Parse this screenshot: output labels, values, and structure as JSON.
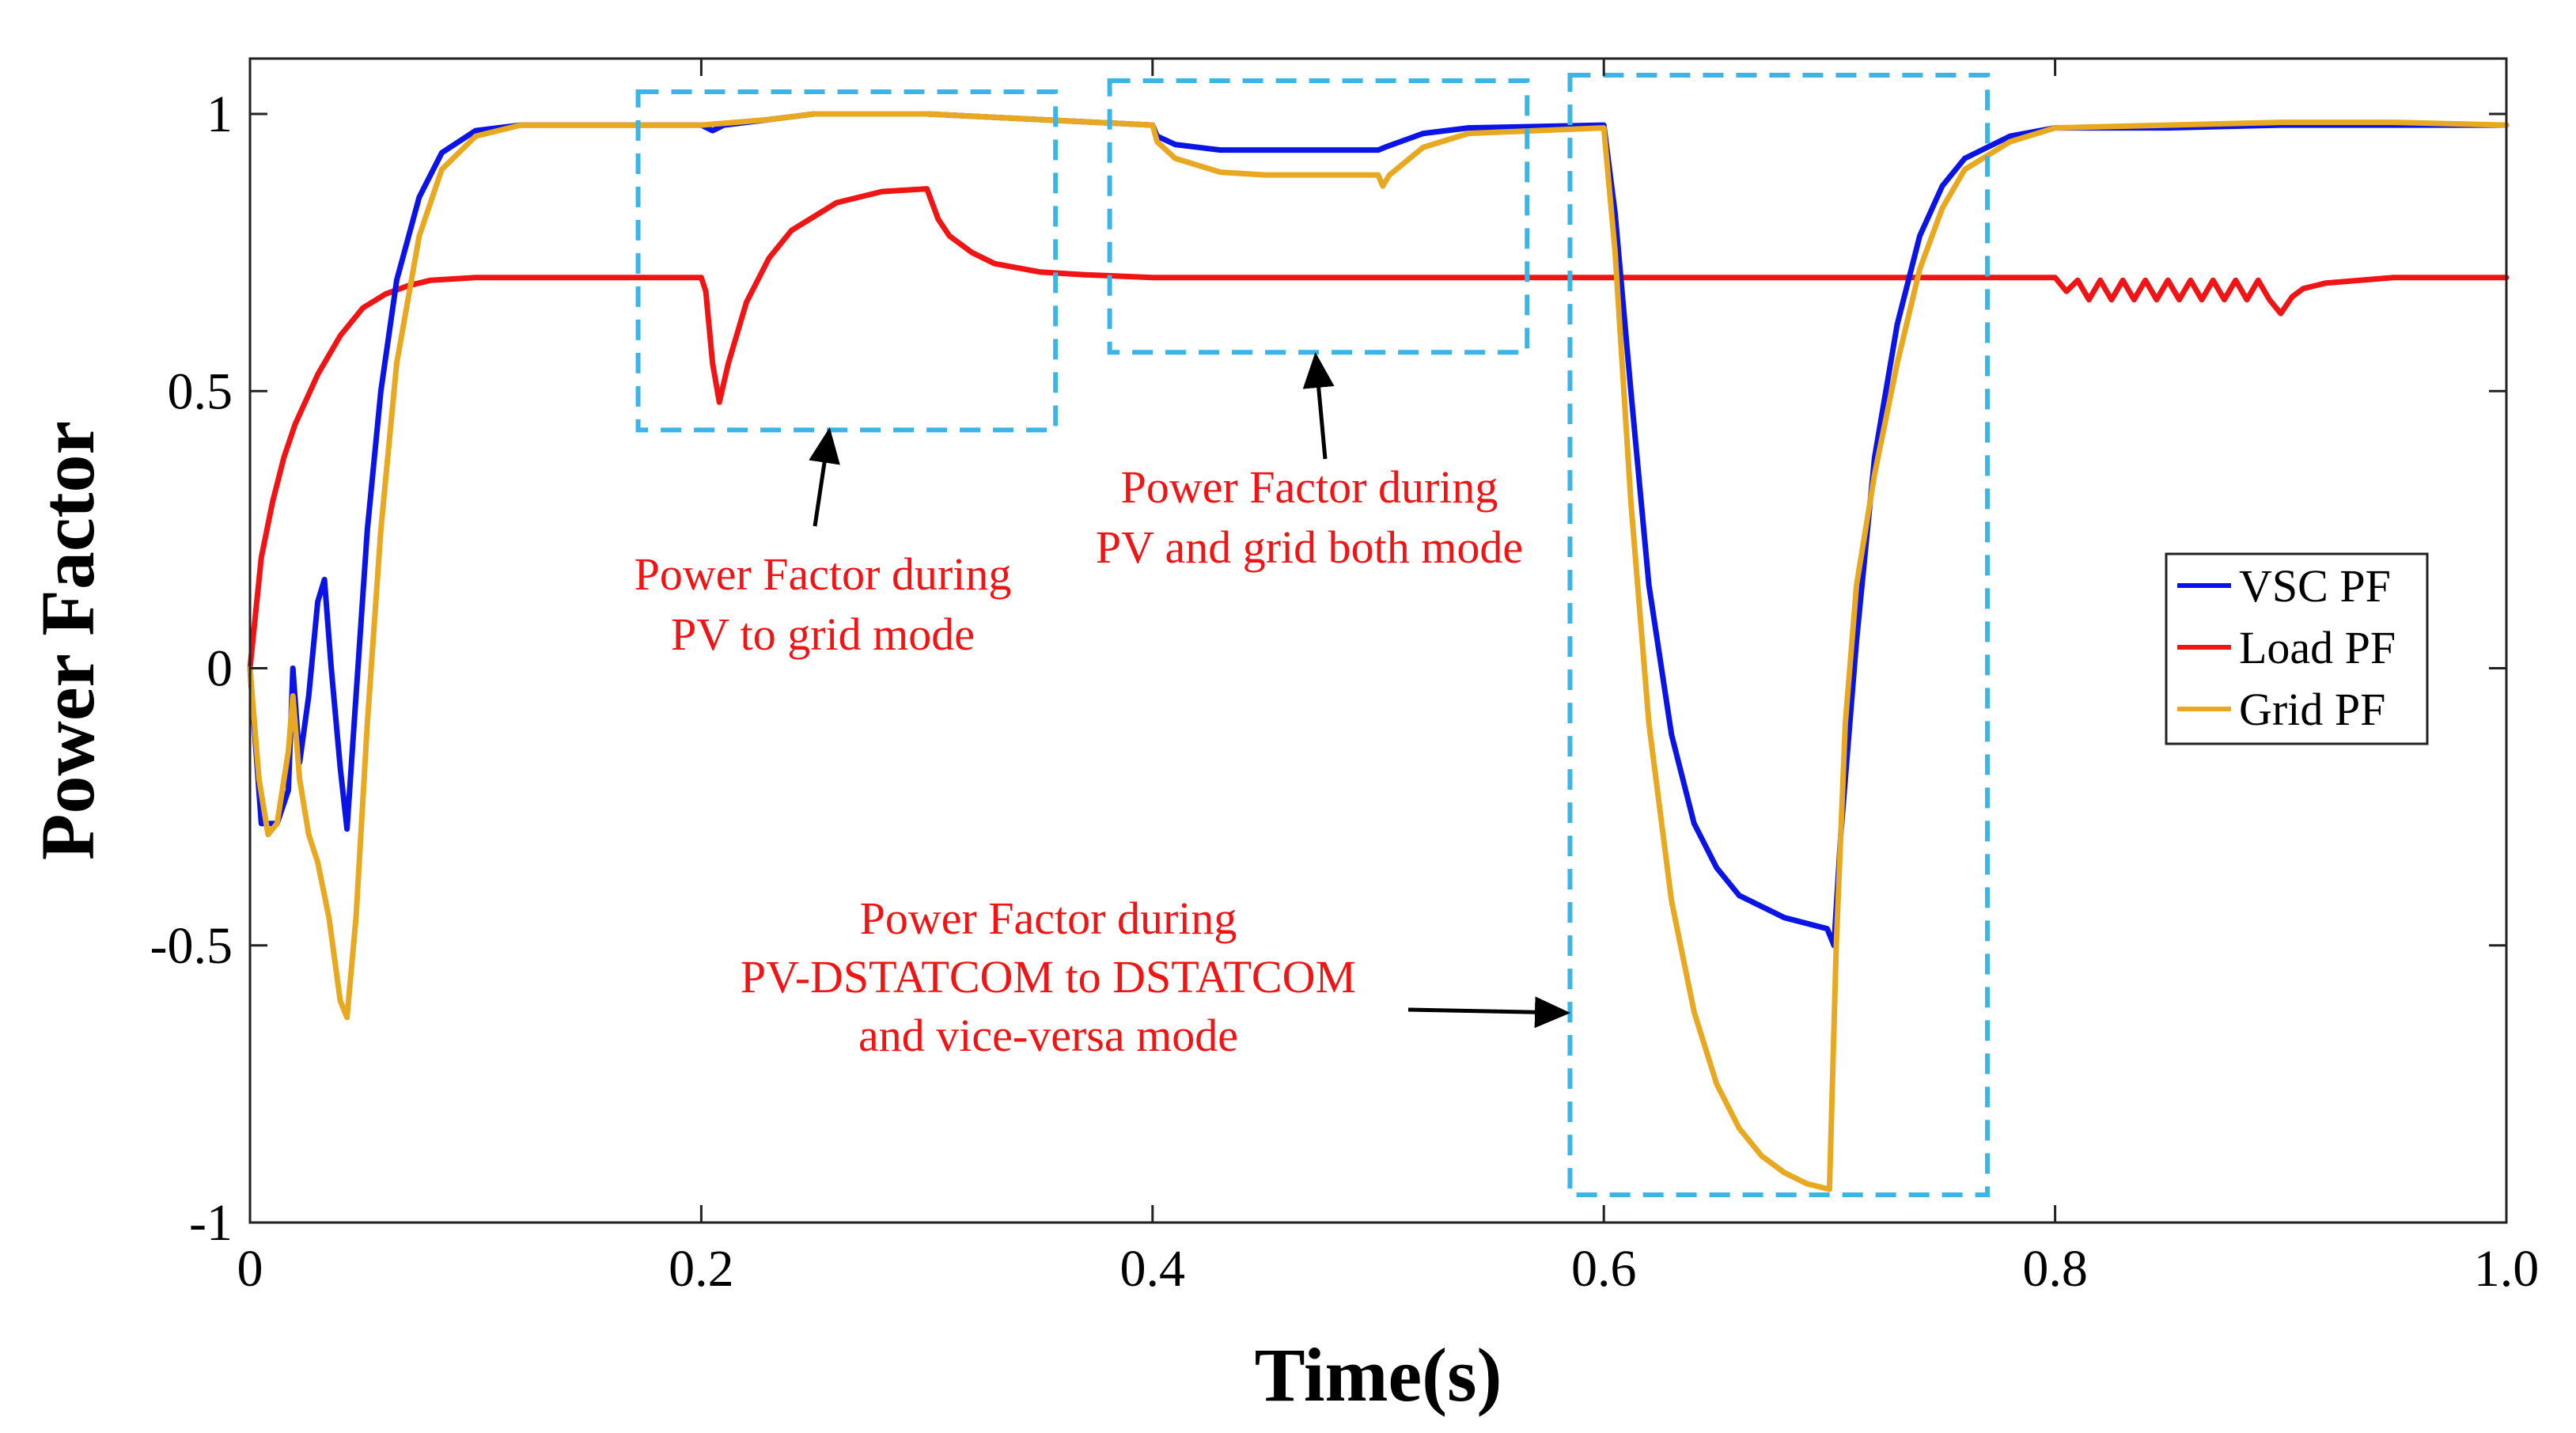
{
  "chart_data": {
    "type": "line",
    "title": "",
    "xlabel": "Time(s)",
    "ylabel": "Power Factor",
    "xlim": [
      0,
      1.0
    ],
    "ylim": [
      -1,
      1.1
    ],
    "xticks": [
      0,
      0.2,
      0.4,
      0.6,
      0.8,
      1.0
    ],
    "xtick_labels": [
      "0",
      "0.2",
      "0.4",
      "0.6",
      "0.8",
      "1.0"
    ],
    "yticks": [
      -1,
      -0.5,
      0,
      0.5,
      1
    ],
    "ytick_labels": [
      "-1",
      "-0.5",
      "0",
      "0.5",
      "1"
    ],
    "grid": false,
    "legend_position": "right",
    "series": [
      {
        "name": "VSC PF",
        "color": "#0a14e6",
        "points": [
          [
            0,
            0
          ],
          [
            0.005,
            -0.28
          ],
          [
            0.012,
            -0.28
          ],
          [
            0.017,
            -0.22
          ],
          [
            0.019,
            0.0
          ],
          [
            0.022,
            -0.17
          ],
          [
            0.026,
            -0.05
          ],
          [
            0.03,
            0.12
          ],
          [
            0.033,
            0.16
          ],
          [
            0.036,
            0.0
          ],
          [
            0.04,
            -0.18
          ],
          [
            0.043,
            -0.29
          ],
          [
            0.047,
            -0.05
          ],
          [
            0.052,
            0.25
          ],
          [
            0.058,
            0.5
          ],
          [
            0.065,
            0.7
          ],
          [
            0.075,
            0.85
          ],
          [
            0.085,
            0.93
          ],
          [
            0.1,
            0.97
          ],
          [
            0.12,
            0.98
          ],
          [
            0.2,
            0.98
          ],
          [
            0.205,
            0.97
          ],
          [
            0.21,
            0.98
          ],
          [
            0.23,
            0.99
          ],
          [
            0.25,
            1.0
          ],
          [
            0.3,
            1.0
          ],
          [
            0.35,
            0.99
          ],
          [
            0.4,
            0.98
          ],
          [
            0.402,
            0.96
          ],
          [
            0.41,
            0.945
          ],
          [
            0.43,
            0.935
          ],
          [
            0.5,
            0.935
          ],
          [
            0.503,
            0.94
          ],
          [
            0.52,
            0.965
          ],
          [
            0.54,
            0.975
          ],
          [
            0.6,
            0.98
          ],
          [
            0.605,
            0.82
          ],
          [
            0.612,
            0.5
          ],
          [
            0.62,
            0.15
          ],
          [
            0.63,
            -0.12
          ],
          [
            0.64,
            -0.28
          ],
          [
            0.65,
            -0.36
          ],
          [
            0.66,
            -0.41
          ],
          [
            0.68,
            -0.45
          ],
          [
            0.699,
            -0.47
          ],
          [
            0.702,
            -0.5
          ],
          [
            0.705,
            -0.3
          ],
          [
            0.712,
            0.05
          ],
          [
            0.72,
            0.38
          ],
          [
            0.73,
            0.62
          ],
          [
            0.74,
            0.78
          ],
          [
            0.75,
            0.87
          ],
          [
            0.76,
            0.92
          ],
          [
            0.78,
            0.96
          ],
          [
            0.8,
            0.975
          ],
          [
            0.85,
            0.975
          ],
          [
            0.9,
            0.98
          ],
          [
            0.95,
            0.98
          ],
          [
            1.0,
            0.98
          ]
        ]
      },
      {
        "name": "Load PF",
        "color": "#f01414",
        "points": [
          [
            0,
            0
          ],
          [
            0.005,
            0.2
          ],
          [
            0.01,
            0.3
          ],
          [
            0.015,
            0.38
          ],
          [
            0.02,
            0.44
          ],
          [
            0.03,
            0.53
          ],
          [
            0.04,
            0.6
          ],
          [
            0.05,
            0.65
          ],
          [
            0.06,
            0.675
          ],
          [
            0.07,
            0.69
          ],
          [
            0.08,
            0.7
          ],
          [
            0.1,
            0.705
          ],
          [
            0.2,
            0.705
          ],
          [
            0.202,
            0.68
          ],
          [
            0.205,
            0.55
          ],
          [
            0.208,
            0.48
          ],
          [
            0.212,
            0.55
          ],
          [
            0.22,
            0.66
          ],
          [
            0.23,
            0.74
          ],
          [
            0.24,
            0.79
          ],
          [
            0.26,
            0.84
          ],
          [
            0.28,
            0.86
          ],
          [
            0.3,
            0.865
          ],
          [
            0.305,
            0.81
          ],
          [
            0.31,
            0.78
          ],
          [
            0.32,
            0.75
          ],
          [
            0.33,
            0.73
          ],
          [
            0.35,
            0.715
          ],
          [
            0.37,
            0.71
          ],
          [
            0.4,
            0.705
          ],
          [
            0.6,
            0.705
          ],
          [
            0.8,
            0.705
          ],
          [
            0.805,
            0.68
          ],
          [
            0.81,
            0.7
          ],
          [
            0.815,
            0.665
          ],
          [
            0.82,
            0.7
          ],
          [
            0.825,
            0.665
          ],
          [
            0.83,
            0.7
          ],
          [
            0.835,
            0.665
          ],
          [
            0.84,
            0.7
          ],
          [
            0.845,
            0.665
          ],
          [
            0.85,
            0.7
          ],
          [
            0.855,
            0.665
          ],
          [
            0.86,
            0.7
          ],
          [
            0.865,
            0.665
          ],
          [
            0.87,
            0.7
          ],
          [
            0.875,
            0.665
          ],
          [
            0.88,
            0.7
          ],
          [
            0.885,
            0.665
          ],
          [
            0.89,
            0.7
          ],
          [
            0.895,
            0.665
          ],
          [
            0.9,
            0.64
          ],
          [
            0.905,
            0.67
          ],
          [
            0.91,
            0.685
          ],
          [
            0.92,
            0.695
          ],
          [
            0.95,
            0.705
          ],
          [
            1.0,
            0.705
          ]
        ]
      },
      {
        "name": "Grid PF",
        "color": "#e8a820",
        "points": [
          [
            0,
            0
          ],
          [
            0.004,
            -0.2
          ],
          [
            0.008,
            -0.3
          ],
          [
            0.012,
            -0.28
          ],
          [
            0.017,
            -0.15
          ],
          [
            0.019,
            -0.05
          ],
          [
            0.022,
            -0.2
          ],
          [
            0.026,
            -0.3
          ],
          [
            0.03,
            -0.35
          ],
          [
            0.035,
            -0.45
          ],
          [
            0.04,
            -0.6
          ],
          [
            0.043,
            -0.63
          ],
          [
            0.047,
            -0.45
          ],
          [
            0.052,
            -0.1
          ],
          [
            0.058,
            0.25
          ],
          [
            0.065,
            0.55
          ],
          [
            0.075,
            0.78
          ],
          [
            0.085,
            0.9
          ],
          [
            0.1,
            0.96
          ],
          [
            0.12,
            0.98
          ],
          [
            0.2,
            0.98
          ],
          [
            0.23,
            0.99
          ],
          [
            0.25,
            1.0
          ],
          [
            0.3,
            1.0
          ],
          [
            0.35,
            0.99
          ],
          [
            0.4,
            0.98
          ],
          [
            0.402,
            0.95
          ],
          [
            0.41,
            0.92
          ],
          [
            0.43,
            0.895
          ],
          [
            0.45,
            0.89
          ],
          [
            0.5,
            0.89
          ],
          [
            0.502,
            0.87
          ],
          [
            0.505,
            0.89
          ],
          [
            0.52,
            0.94
          ],
          [
            0.54,
            0.965
          ],
          [
            0.6,
            0.975
          ],
          [
            0.605,
            0.75
          ],
          [
            0.612,
            0.3
          ],
          [
            0.62,
            -0.1
          ],
          [
            0.63,
            -0.42
          ],
          [
            0.64,
            -0.62
          ],
          [
            0.65,
            -0.75
          ],
          [
            0.66,
            -0.83
          ],
          [
            0.67,
            -0.88
          ],
          [
            0.68,
            -0.91
          ],
          [
            0.69,
            -0.93
          ],
          [
            0.7,
            -0.94
          ],
          [
            0.703,
            -0.5
          ],
          [
            0.707,
            -0.1
          ],
          [
            0.712,
            0.15
          ],
          [
            0.72,
            0.35
          ],
          [
            0.73,
            0.55
          ],
          [
            0.74,
            0.72
          ],
          [
            0.75,
            0.83
          ],
          [
            0.76,
            0.9
          ],
          [
            0.78,
            0.95
          ],
          [
            0.8,
            0.975
          ],
          [
            0.85,
            0.98
          ],
          [
            0.9,
            0.985
          ],
          [
            0.95,
            0.985
          ],
          [
            1.0,
            0.98
          ]
        ]
      }
    ],
    "annotations": [
      {
        "label": "Power Factor during PV to grid mode",
        "lines": [
          "Power Factor during",
          "PV to grid mode"
        ],
        "color": "#f01414",
        "box_x": [
          0.172,
          0.357
        ],
        "box_y": [
          0.43,
          1.04
        ]
      },
      {
        "label": "Power Factor during PV and grid both mode",
        "lines": [
          "Power Factor during",
          "PV and grid both mode"
        ],
        "color": "#f01414",
        "box_x": [
          0.381,
          0.566
        ],
        "box_y": [
          0.57,
          1.06
        ]
      },
      {
        "label": "Power Factor during PV-DSTATCOM to DSTATCOM and vice-versa mode",
        "lines": [
          "Power Factor during",
          "PV-DSTATCOM to DSTATCOM",
          "and vice-versa mode"
        ],
        "color": "#f01414",
        "box_x": [
          0.585,
          0.77
        ],
        "box_y": [
          -0.95,
          1.07
        ]
      }
    ],
    "annotation_box_color": "#3cb4e6"
  }
}
